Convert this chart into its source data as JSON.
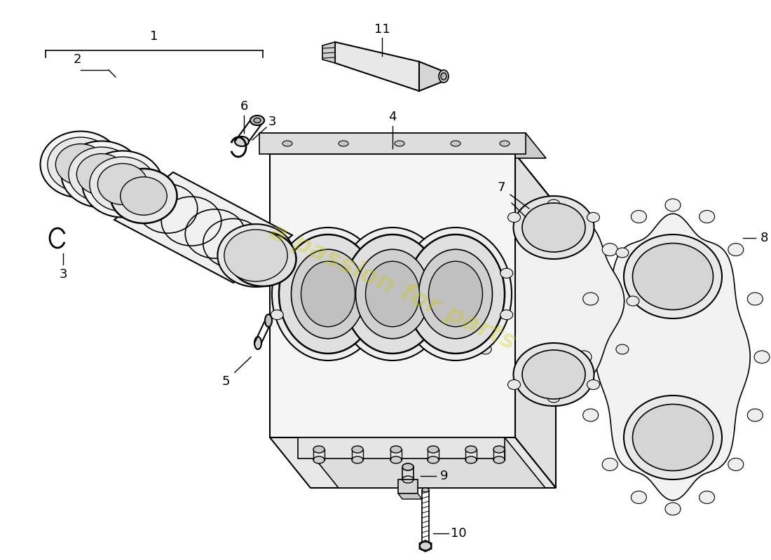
{
  "bg_color": "#ffffff",
  "line_color": "#000000",
  "watermark_color": "#cccc00",
  "watermark_text": "a passion for parts",
  "watermark_alpha": 0.3,
  "figsize": [
    11.0,
    8.0
  ],
  "dpi": 100
}
